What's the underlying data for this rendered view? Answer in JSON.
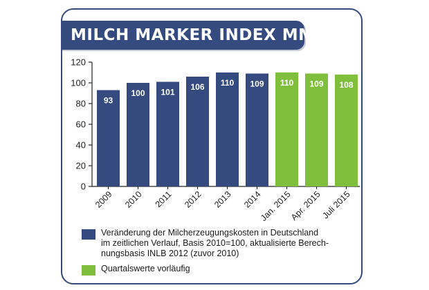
{
  "title": "MILCH MARKER INDEX MMI",
  "colors": {
    "primary": "#354b7f",
    "secondary": "#7fbf3b",
    "axis": "#222222",
    "label": "#ffffff"
  },
  "chart_data": {
    "type": "bar",
    "title": "MILCH MARKER INDEX MMI",
    "xlabel": "",
    "ylabel": "",
    "ylim": [
      0,
      120
    ],
    "yticks": [
      0,
      20,
      40,
      60,
      80,
      100,
      120
    ],
    "grid": false,
    "categories": [
      "2009",
      "2010",
      "2011",
      "2012",
      "2013",
      "2014",
      "Jan. 2015",
      "Apr. 2015",
      "Juli 2015"
    ],
    "values": [
      93,
      100,
      101,
      106,
      110,
      109,
      110,
      109,
      108
    ],
    "series_assignment": [
      "primary",
      "primary",
      "primary",
      "primary",
      "primary",
      "primary",
      "secondary",
      "secondary",
      "secondary"
    ],
    "legend": [
      {
        "key": "primary",
        "text": "Veränderung der Milcherzeugungskosten in Deutschland\nim zeitlichen Verlauf, Basis 2010=100, aktualisierte Berech-\nnungsbasis INLB 2012 (zuvor 2010)"
      },
      {
        "key": "secondary",
        "text": "Quartalswerte vorläufig"
      }
    ]
  }
}
